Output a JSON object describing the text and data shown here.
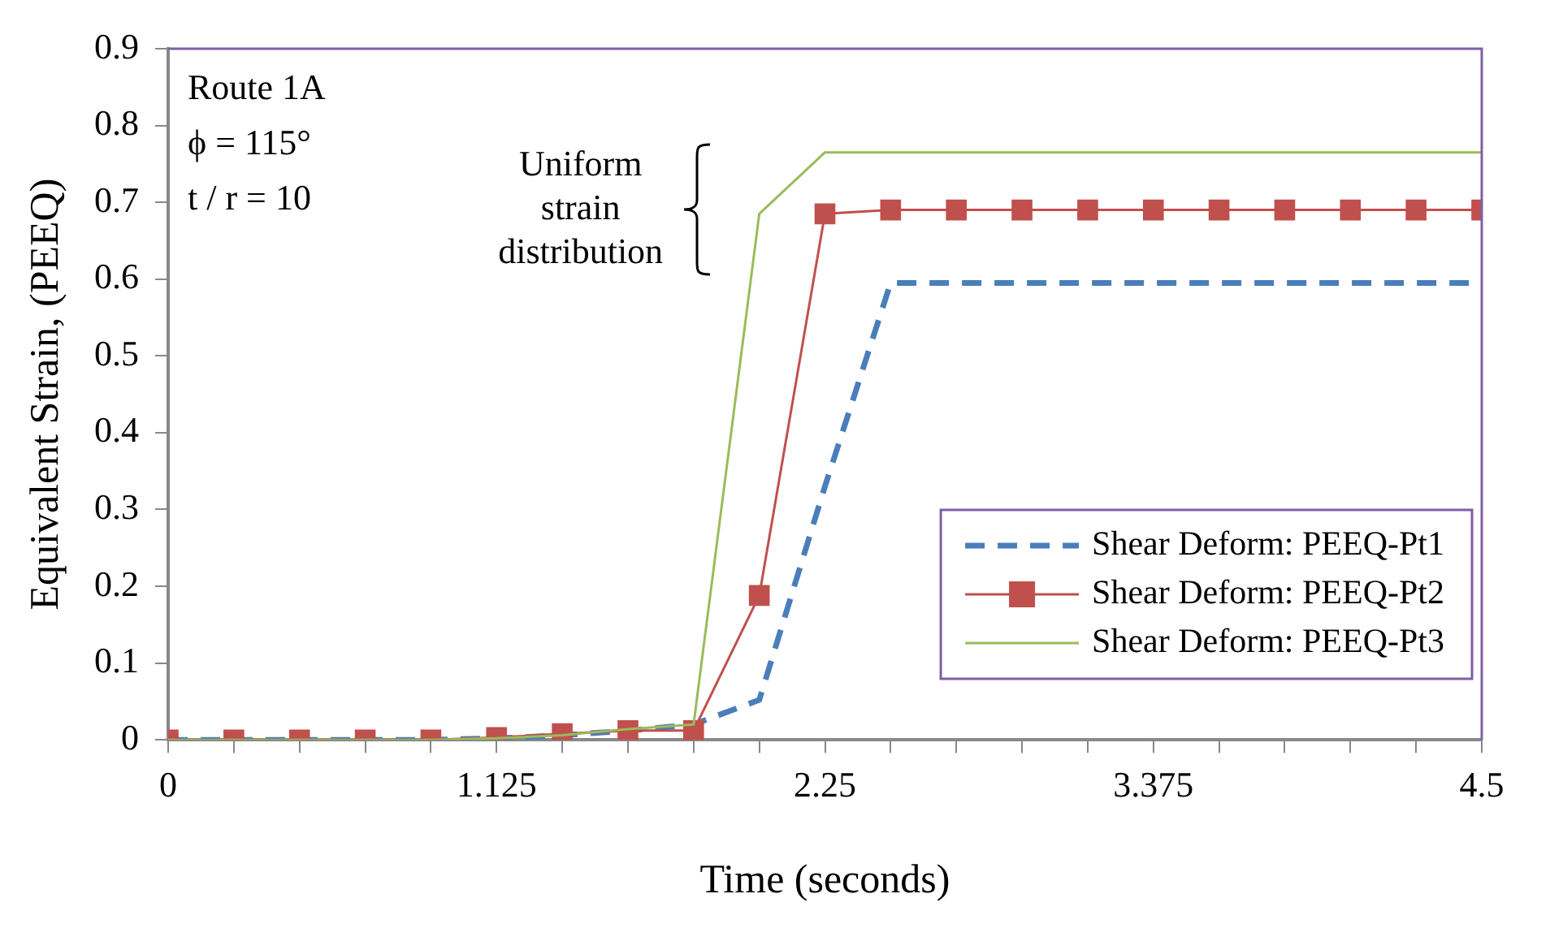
{
  "chart_data": {
    "type": "line",
    "xlabel": "Time (seconds)",
    "ylabel": "Equivalent Strain, (PEEQ)",
    "x": [
      0,
      0.225,
      0.45,
      0.675,
      0.9,
      1.125,
      1.35,
      1.575,
      1.8,
      2.025,
      2.25,
      2.475,
      2.7,
      2.925,
      3.15,
      3.375,
      3.6,
      3.825,
      4.05,
      4.275,
      4.5
    ],
    "xlim": [
      0,
      4.5
    ],
    "xticks": [
      0,
      {
        "value": 0.225,
        "label": null
      },
      {
        "value": 0.45,
        "label": null
      },
      {
        "value": 0.675,
        "label": null
      },
      {
        "value": 0.9,
        "label": null
      },
      1.125,
      {
        "value": 1.35,
        "label": null
      },
      {
        "value": 1.575,
        "label": null
      },
      {
        "value": 1.8,
        "label": null
      },
      {
        "value": 2.025,
        "label": null
      },
      2.25,
      {
        "value": 2.475,
        "label": null
      },
      {
        "value": 2.7,
        "label": null
      },
      {
        "value": 2.925,
        "label": null
      },
      {
        "value": 3.15,
        "label": null
      },
      3.375,
      {
        "value": 3.6,
        "label": null
      },
      {
        "value": 3.825,
        "label": null
      },
      {
        "value": 4.05,
        "label": null
      },
      {
        "value": 4.275,
        "label": null
      },
      4.5
    ],
    "ylim": [
      0,
      0.9
    ],
    "yticks": [
      0,
      0.1,
      0.2,
      0.3,
      0.4,
      0.5,
      0.6,
      0.7,
      0.8,
      0.9
    ],
    "grid": false,
    "legend": "right",
    "series": [
      {
        "name": "Shear Deform: PEEQ-Pt1",
        "color": "#4a7ebb",
        "marker": "none",
        "line_style": "dashed",
        "values": [
          0,
          0,
          0,
          0,
          0,
          0.002,
          0.006,
          0.012,
          0.02,
          0.052,
          0.33,
          0.595,
          0.595,
          0.595,
          0.595,
          0.595,
          0.595,
          0.595,
          0.595,
          0.595,
          0.595
        ]
      },
      {
        "name": "Shear Deform: PEEQ-Pt2",
        "color": "#c0504d",
        "marker": "square",
        "line_style": "solid",
        "values": [
          0,
          0,
          0,
          0,
          0,
          0.003,
          0.008,
          0.012,
          0.012,
          0.188,
          0.685,
          0.69,
          0.69,
          0.69,
          0.69,
          0.69,
          0.69,
          0.69,
          0.69,
          0.69,
          0.69
        ]
      },
      {
        "name": "Shear Deform: PEEQ-Pt3",
        "color": "#9bbb59",
        "marker": "none",
        "line_style": "solid",
        "values": [
          0,
          0,
          0,
          0,
          0,
          0.002,
          0.006,
          0.014,
          0.02,
          0.685,
          0.765,
          0.765,
          0.765,
          0.765,
          0.765,
          0.765,
          0.765,
          0.765,
          0.765,
          0.765,
          0.765
        ]
      }
    ],
    "annotations": [
      "Route 1A",
      "ϕ = 115°",
      "t / r = 10",
      {
        "text": "Uniform strain distribution",
        "x": 2.025,
        "y": 0.69
      }
    ]
  }
}
